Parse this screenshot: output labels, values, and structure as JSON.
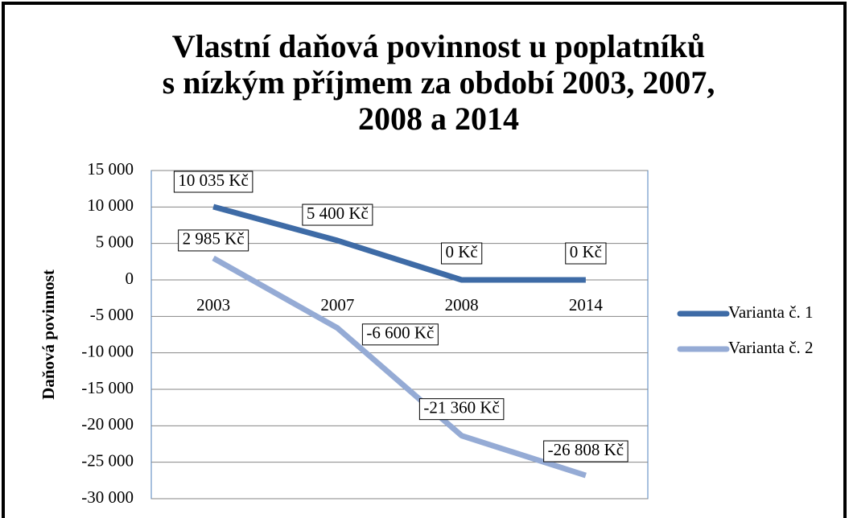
{
  "chart_data": {
    "type": "line",
    "title": [
      "Vlastní daňová povinnost u poplatníků",
      "s nízkým příjmem za období 2003, 2007,",
      "2008 a 2014"
    ],
    "y_label": "Daňová povinnost",
    "categories": [
      "2003",
      "2007",
      "2008",
      "2014"
    ],
    "series": [
      {
        "name": "Varianta č. 1",
        "color": "#3e6ba6",
        "values": [
          10035,
          5400,
          0,
          0
        ],
        "value_labels": [
          "10 035 Kč",
          "5 400 Kč",
          "0 Kč",
          "0 Kč"
        ]
      },
      {
        "name": "Varianta č. 2",
        "color": "#95abd5",
        "values": [
          2985,
          -6600,
          -21360,
          -26808
        ],
        "value_labels": [
          "2 985 Kč",
          "-6 600 Kč",
          "-21 360 Kč",
          "-26 808 Kč"
        ]
      }
    ],
    "ylim": [
      -30000,
      15000
    ],
    "yticks": [
      {
        "value": -30000,
        "label": "-30 000"
      },
      {
        "value": -25000,
        "label": "-25 000"
      },
      {
        "value": -20000,
        "label": "-20 000"
      },
      {
        "value": -15000,
        "label": "-15 000"
      },
      {
        "value": -10000,
        "label": "-10 000"
      },
      {
        "value": -5000,
        "label": "-5 000"
      },
      0,
      {
        "value": 5000,
        "label": "5 000"
      },
      {
        "value": 10000,
        "label": "10 000"
      },
      {
        "value": 15000,
        "label": "15 000"
      }
    ],
    "grid": true,
    "legend": "right"
  }
}
